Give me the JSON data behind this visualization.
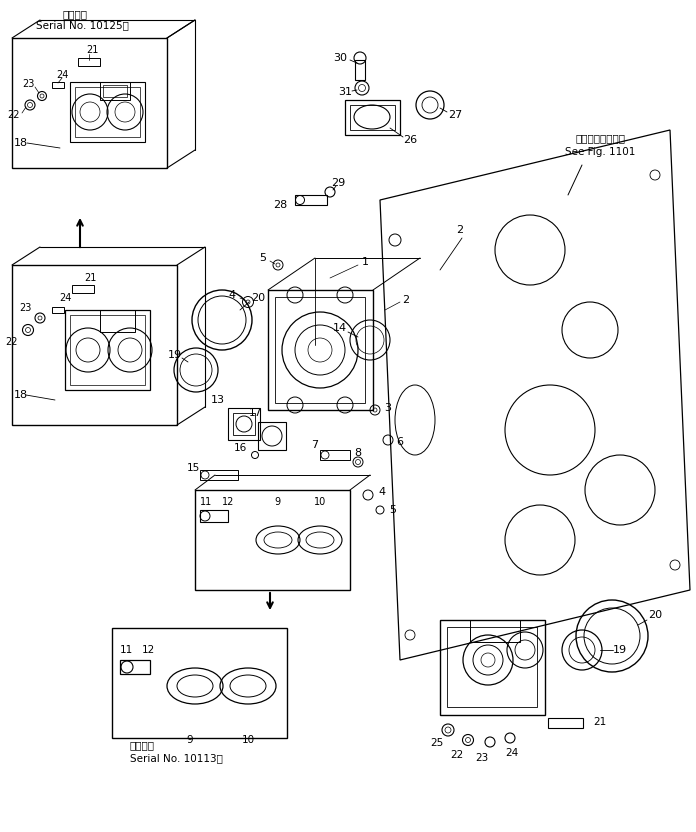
{
  "bg_color": "#ffffff",
  "lc": "#000000",
  "fig_w": 6.96,
  "fig_h": 8.32,
  "dpi": 100,
  "title_top_jp": "適用号機",
  "title_top_en": "Serial No. 10125～",
  "title_bot_jp": "適用号機",
  "title_bot_en": "Serial No. 10113～",
  "see_fig_jp": "第１１０１図参照",
  "see_fig_en": "See Fig. 1101"
}
